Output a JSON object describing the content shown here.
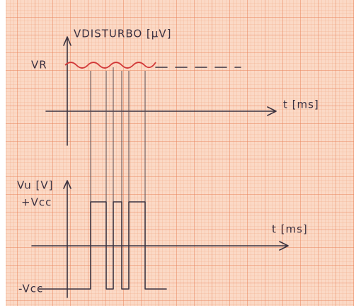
{
  "top_graph": {
    "y_label": "VDISTURBO [μV]",
    "ref_label": "VR",
    "x_label": "t [ms]"
  },
  "bottom_graph": {
    "y_label": "Vu [V]",
    "high_label": "+Vcc",
    "low_label": "-Vcc",
    "x_label": "t [ms]"
  }
}
